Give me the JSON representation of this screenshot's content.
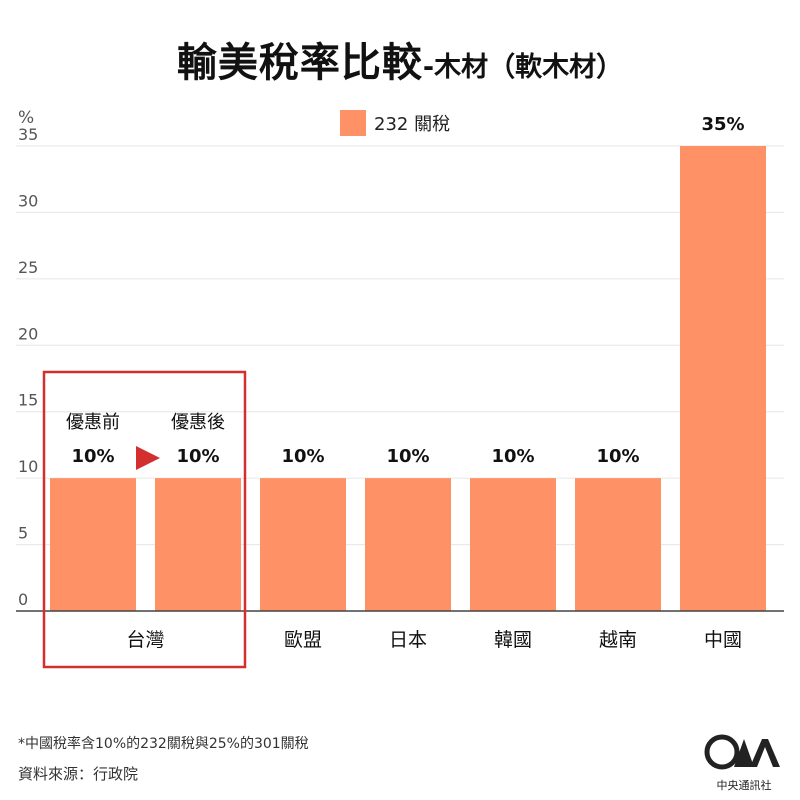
{
  "header": {
    "title_main": "輸美稅率比較",
    "title_sub": "-木材（軟木材）"
  },
  "chart_data": {
    "type": "bar",
    "unit_label": "%",
    "legend": [
      {
        "label": "232 關稅",
        "color": "#FF9166"
      }
    ],
    "ylim": [
      0,
      35
    ],
    "yticks": [
      0,
      5,
      10,
      15,
      20,
      25,
      30,
      35
    ],
    "bars": [
      {
        "label": "優惠前",
        "value": 10,
        "value_label": "10%",
        "group": "台灣"
      },
      {
        "label": "優惠後",
        "value": 10,
        "value_label": "10%",
        "group": "台灣"
      },
      {
        "label": "歐盟",
        "value": 10,
        "value_label": "10%"
      },
      {
        "label": "日本",
        "value": 10,
        "value_label": "10%"
      },
      {
        "label": "韓國",
        "value": 10,
        "value_label": "10%"
      },
      {
        "label": "越南",
        "value": 10,
        "value_label": "10%"
      },
      {
        "label": "中國",
        "value": 35,
        "value_label": "35%"
      }
    ],
    "group_label": "台灣",
    "bar_color": "#FF9166",
    "highlight_color": "#D32F2F"
  },
  "footer": {
    "footnote": "*中國稅率含10%的232關稅與25%的301關稅",
    "source": "資料來源：行政院",
    "logo_name": "中央通訊社"
  }
}
